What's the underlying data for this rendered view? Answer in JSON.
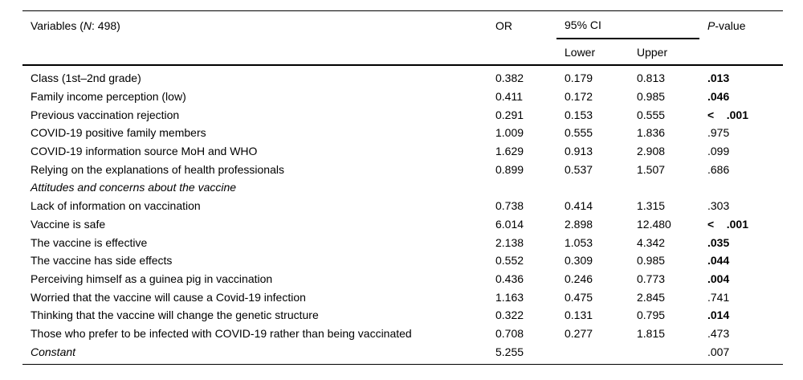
{
  "table": {
    "header": {
      "variables_prefix": "Variables (",
      "variables_n": "N",
      "variables_suffix": ": 498)",
      "or": "OR",
      "ci": "95% CI",
      "ci_lower": "Lower",
      "ci_upper": "Upper",
      "p_italic": "P",
      "p_suffix": "-value"
    },
    "rows": [
      {
        "label": "Class (1st–2nd grade)",
        "or": "0.382",
        "lower": "0.179",
        "upper": "0.813",
        "p": ".013",
        "p_bold": true,
        "italic": false
      },
      {
        "label": "Family income perception (low)",
        "or": "0.411",
        "lower": "0.172",
        "upper": "0.985",
        "p": ".046",
        "p_bold": true,
        "italic": false
      },
      {
        "label": "Previous vaccination rejection",
        "or": "0.291",
        "lower": "0.153",
        "upper": "0.555",
        "p": "<    .001",
        "p_bold": true,
        "italic": false
      },
      {
        "label": "COVID-19 positive family members",
        "or": "1.009",
        "lower": "0.555",
        "upper": "1.836",
        "p": ".975",
        "p_bold": false,
        "italic": false
      },
      {
        "label": "COVID-19 information source MoH and WHO",
        "or": "1.629",
        "lower": "0.913",
        "upper": "2.908",
        "p": ".099",
        "p_bold": false,
        "italic": false
      },
      {
        "label": "Relying on the explanations of health professionals",
        "or": "0.899",
        "lower": "0.537",
        "upper": "1.507",
        "p": ".686",
        "p_bold": false,
        "italic": false
      },
      {
        "label": "Attitudes and concerns about the vaccine",
        "or": "",
        "lower": "",
        "upper": "",
        "p": "",
        "p_bold": false,
        "italic": true
      },
      {
        "label": "Lack of information on vaccination",
        "or": "0.738",
        "lower": "0.414",
        "upper": "1.315",
        "p": ".303",
        "p_bold": false,
        "italic": false
      },
      {
        "label": "Vaccine is safe",
        "or": "6.014",
        "lower": "2.898",
        "upper": "12.480",
        "p": "<    .001",
        "p_bold": true,
        "italic": false
      },
      {
        "label": "The vaccine is effective",
        "or": "2.138",
        "lower": "1.053",
        "upper": "4.342",
        "p": ".035",
        "p_bold": true,
        "italic": false
      },
      {
        "label": "The vaccine has side effects",
        "or": "0.552",
        "lower": "0.309",
        "upper": "0.985",
        "p": ".044",
        "p_bold": true,
        "italic": false
      },
      {
        "label": "Perceiving himself as a guinea pig in vaccination",
        "or": "0.436",
        "lower": "0.246",
        "upper": "0.773",
        "p": ".004",
        "p_bold": true,
        "italic": false
      },
      {
        "label": "Worried that the vaccine will cause a Covid-19 infection",
        "or": "1.163",
        "lower": "0.475",
        "upper": "2.845",
        "p": ".741",
        "p_bold": false,
        "italic": false
      },
      {
        "label": "Thinking that the vaccine will change the genetic structure",
        "or": "0.322",
        "lower": "0.131",
        "upper": "0.795",
        "p": ".014",
        "p_bold": true,
        "italic": false
      },
      {
        "label": "Those who prefer to be infected with COVID-19 rather than being vaccinated",
        "or": "0.708",
        "lower": "0.277",
        "upper": "1.815",
        "p": ".473",
        "p_bold": false,
        "italic": false
      },
      {
        "label": "Constant",
        "or": "5.255",
        "lower": "",
        "upper": "",
        "p": ".007",
        "p_bold": false,
        "italic": true
      }
    ]
  }
}
